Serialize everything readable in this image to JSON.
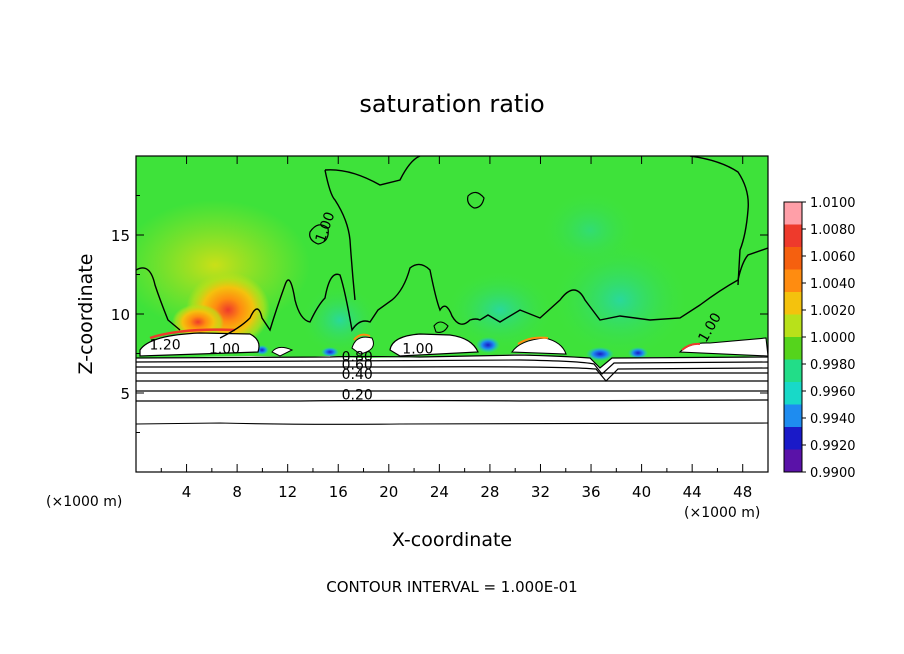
{
  "chart_data": {
    "type": "heatmap",
    "title": "saturation ratio",
    "xlabel": "X-coordinate",
    "ylabel": "Z-coordinate",
    "x_unit": "(×1000 m)",
    "y_unit": "(×1000 m)",
    "xlim": [
      0,
      50
    ],
    "ylim": [
      0,
      20
    ],
    "x_ticks": [
      4,
      8,
      12,
      16,
      20,
      24,
      28,
      32,
      36,
      40,
      44,
      48
    ],
    "y_ticks": [
      5,
      10,
      15
    ],
    "colorbar": {
      "min": 0.99,
      "max": 1.01,
      "labels": [
        "1.0100",
        "1.0080",
        "1.0060",
        "1.0040",
        "1.0020",
        "1.0000",
        "0.9980",
        "0.9960",
        "0.9940",
        "0.9920",
        "0.9900"
      ],
      "colors": [
        "#ff9fa8",
        "#ee3a2c",
        "#f5600f",
        "#ff8c10",
        "#f4c20d",
        "#b8e11a",
        "#55d41c",
        "#22dd88",
        "#18d9c8",
        "#1e8cf0",
        "#1a1ac8",
        "#5a12a8"
      ]
    },
    "background_color": "#3ee23a",
    "contour_labels": [
      "1.20",
      "1.00",
      "1.00",
      "1.00",
      "0.80",
      "0.60",
      "0.40",
      "0.20",
      "1.00",
      "1.00"
    ],
    "contour_interval_note": "CONTOUR INTERVAL = 1.000E-01"
  }
}
